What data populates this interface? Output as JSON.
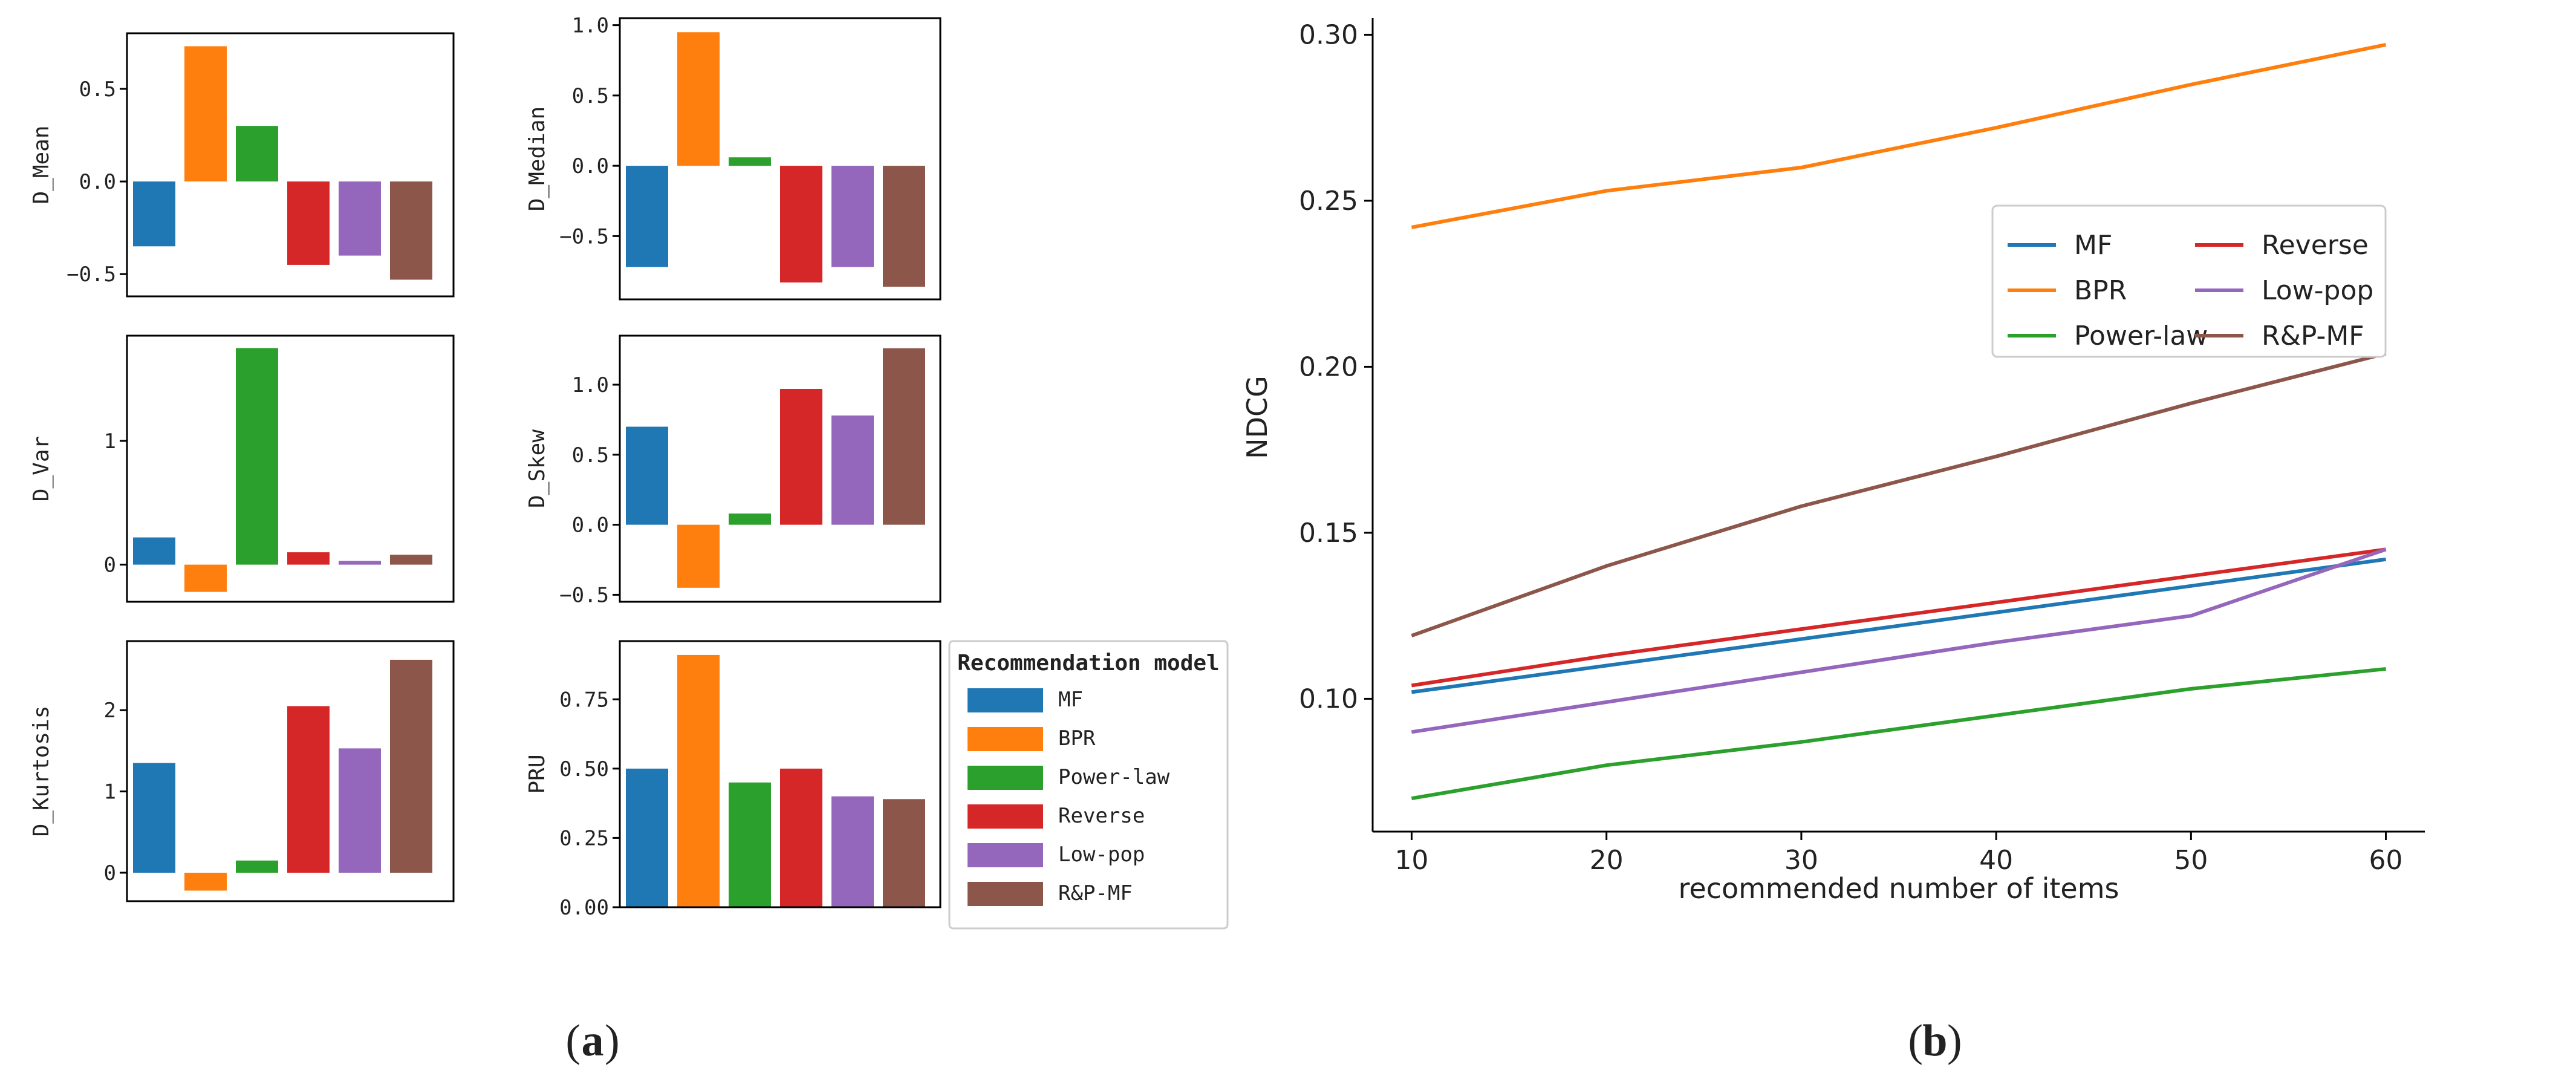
{
  "chart_data": [
    {
      "panel": "a",
      "type": "bar",
      "caption_open": "(",
      "caption_letter": "a",
      "caption_close": ")",
      "legend": {
        "title": "Recommendation model",
        "entries": [
          "MF",
          "BPR",
          "Power-law",
          "Reverse",
          "Low-pop",
          "R&P-MF"
        ]
      },
      "colors": [
        "#1f77b4",
        "#ff7f0e",
        "#2ca02c",
        "#d62728",
        "#9467bd",
        "#8c564b"
      ],
      "subplots": [
        {
          "ylabel": "D_Mean",
          "ylim": [
            -0.62,
            0.8
          ],
          "yticks": [
            -0.5,
            0.0,
            0.5
          ],
          "tick_labels": [
            "−0.5",
            "0.0",
            "0.5"
          ],
          "values": [
            -0.35,
            0.73,
            0.3,
            -0.45,
            -0.4,
            -0.53
          ]
        },
        {
          "ylabel": "D_Median",
          "ylim": [
            -0.95,
            1.05
          ],
          "yticks": [
            -0.5,
            0.0,
            0.5,
            1.0
          ],
          "tick_labels": [
            "−0.5",
            "0.0",
            "0.5",
            "1.0"
          ],
          "values": [
            -0.72,
            0.95,
            0.06,
            -0.83,
            -0.72,
            -0.86
          ]
        },
        {
          "ylabel": "D_Var",
          "ylim": [
            -0.3,
            1.85
          ],
          "yticks": [
            0,
            1
          ],
          "tick_labels": [
            "0",
            "1"
          ],
          "values": [
            0.22,
            -0.22,
            1.75,
            0.1,
            0.03,
            0.08
          ]
        },
        {
          "ylabel": "D_Skew",
          "ylim": [
            -0.55,
            1.35
          ],
          "yticks": [
            -0.5,
            0.0,
            0.5,
            1.0
          ],
          "tick_labels": [
            "−0.5",
            "0.0",
            "0.5",
            "1.0"
          ],
          "values": [
            0.7,
            -0.45,
            0.08,
            0.97,
            0.78,
            1.26
          ]
        },
        {
          "ylabel": "D_Kurtosis",
          "ylim": [
            -0.35,
            2.85
          ],
          "yticks": [
            0,
            1,
            2
          ],
          "tick_labels": [
            "0",
            "1",
            "2"
          ],
          "values": [
            1.35,
            -0.22,
            0.15,
            2.05,
            1.53,
            2.62
          ]
        },
        {
          "ylabel": "PRU",
          "ylim": [
            0,
            0.96
          ],
          "yticks": [
            0.0,
            0.25,
            0.5,
            0.75
          ],
          "tick_labels": [
            "0.00",
            "0.25",
            "0.50",
            "0.75"
          ],
          "values": [
            0.5,
            0.91,
            0.45,
            0.5,
            0.4,
            0.39
          ]
        }
      ]
    },
    {
      "panel": "b",
      "type": "line",
      "caption_open": "(",
      "caption_letter": "b",
      "caption_close": ")",
      "xlabel": "recommended number of items",
      "ylabel": "NDCG",
      "x": [
        10,
        20,
        30,
        40,
        50,
        60
      ],
      "xlim": [
        8,
        62
      ],
      "ylim": [
        0.06,
        0.305
      ],
      "xticks": [
        10,
        20,
        30,
        40,
        50,
        60
      ],
      "xtick_labels": [
        "10",
        "20",
        "30",
        "40",
        "50",
        "60"
      ],
      "yticks": [
        0.1,
        0.15,
        0.2,
        0.25,
        0.3
      ],
      "ytick_labels": [
        "0.10",
        "0.15",
        "0.20",
        "0.25",
        "0.30"
      ],
      "legend_position": "center-right",
      "series": [
        {
          "name": "MF",
          "color": "#1f77b4",
          "values": [
            0.102,
            0.11,
            0.118,
            0.126,
            0.134,
            0.142
          ]
        },
        {
          "name": "BPR",
          "color": "#ff7f0e",
          "values": [
            0.242,
            0.253,
            0.26,
            0.272,
            0.285,
            0.297
          ]
        },
        {
          "name": "Power-law",
          "color": "#2ca02c",
          "values": [
            0.07,
            0.08,
            0.087,
            0.095,
            0.103,
            0.109
          ]
        },
        {
          "name": "Reverse",
          "color": "#d62728",
          "values": [
            0.104,
            0.113,
            0.121,
            0.129,
            0.137,
            0.145
          ]
        },
        {
          "name": "Low-pop",
          "color": "#9467bd",
          "values": [
            0.09,
            0.099,
            0.108,
            0.117,
            0.125,
            0.145
          ]
        },
        {
          "name": "R&P-MF",
          "color": "#8c564b",
          "values": [
            0.119,
            0.14,
            0.158,
            0.173,
            0.189,
            0.204
          ]
        }
      ]
    }
  ]
}
